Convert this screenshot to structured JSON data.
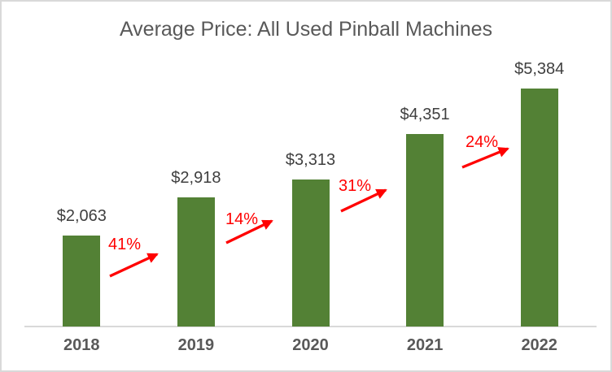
{
  "chart_data": {
    "type": "bar",
    "title": "Average Price: All Used Pinball Machines",
    "categories": [
      "2018",
      "2019",
      "2020",
      "2021",
      "2022"
    ],
    "values": [
      2063,
      2918,
      3313,
      4351,
      5384
    ],
    "value_labels": [
      "$2,063",
      "$2,918",
      "$3,313",
      "$4,351",
      "$5,384"
    ],
    "xlabel": "",
    "ylabel": "",
    "ylim": [
      0,
      6000
    ],
    "grid": false,
    "legend": false,
    "axis_ticks_shown": "x-only",
    "annotations": [
      {
        "label": "41%",
        "from": "2018",
        "to": "2019",
        "tail": [
          135,
          340
        ],
        "tip": [
          193,
          313
        ],
        "label_center": [
          153,
          301
        ]
      },
      {
        "label": "14%",
        "from": "2019",
        "to": "2020",
        "tail": [
          278,
          299
        ],
        "tip": [
          334,
          272
        ],
        "label_center": [
          297,
          270
        ]
      },
      {
        "label": "31%",
        "from": "2020",
        "to": "2021",
        "tail": [
          419,
          260
        ],
        "tip": [
          474,
          234
        ],
        "label_center": [
          436,
          229
        ]
      },
      {
        "label": "24%",
        "from": "2021",
        "to": "2022",
        "tail": [
          568,
          206
        ],
        "tip": [
          624,
          183
        ],
        "label_center": [
          592,
          175
        ]
      }
    ],
    "colors": {
      "bar": "#538135",
      "title": "#595959",
      "value_label": "#3F3F3F",
      "tick_label": "#595959",
      "axis_line": "#D9D9D9",
      "annotation": "#FF0000",
      "border": "#D9D9D9",
      "background": "#FFFFFF"
    }
  }
}
